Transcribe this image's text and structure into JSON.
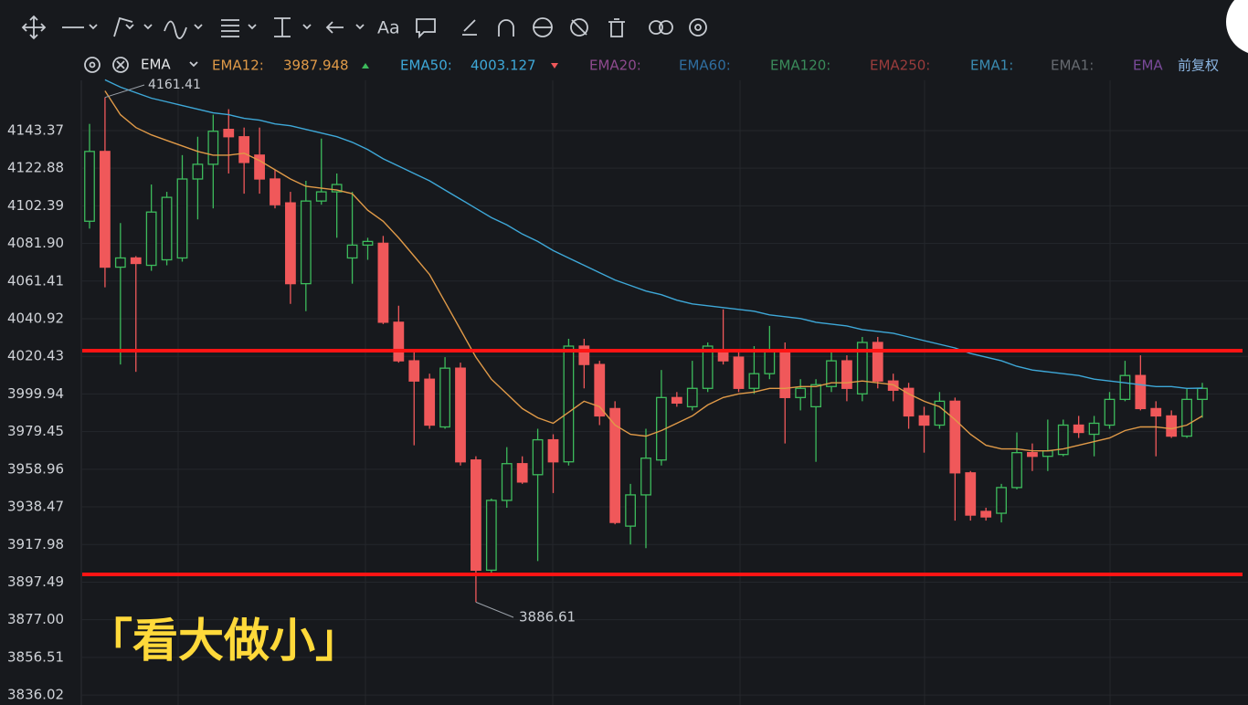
{
  "toolbar": {
    "text_tool": "Aa"
  },
  "indicator": "EMA",
  "adjustment": "前复权",
  "caption": "「看大做小」",
  "chart_data": {
    "type": "candlestick",
    "up_color": "#3dbb5c",
    "down_color": "#f0585a",
    "open": [
      4094,
      4132,
      4069,
      4074,
      4070,
      4073,
      4074,
      4117,
      4125,
      4144,
      4140,
      4130,
      4117,
      4104,
      4060,
      4105,
      4110,
      4074,
      4081,
      4082,
      4039,
      4018,
      4008,
      3982,
      4014,
      3964,
      3904,
      3942,
      3962,
      3956,
      3975,
      3963,
      4026,
      4016,
      3992,
      3928,
      3945,
      3964,
      3998,
      3993,
      4003,
      4024,
      4020,
      4003,
      4011,
      4023,
      3998,
      3993,
      4004,
      4018,
      4000,
      4028,
      4007,
      4003,
      3988,
      3983,
      3996,
      3957,
      3936,
      3935,
      3949,
      3968,
      3966,
      3967,
      3983,
      3978,
      3983,
      3997,
      4010,
      3992,
      3988,
      3977,
      3997
    ],
    "high": [
      4147,
      4161.41,
      4093,
      4075,
      4114,
      4110,
      4130,
      4140,
      4152,
      4155,
      4145,
      4145,
      4122,
      4110,
      4116,
      4139,
      4120,
      4110,
      4085,
      4086,
      4048,
      4023,
      4011,
      4020,
      4017,
      3966,
      3943,
      3971,
      3966,
      3981,
      3978,
      4030,
      4030,
      4018,
      3996,
      3951,
      3981,
      4013,
      4001,
      4018,
      4028,
      4046,
      4023,
      4026,
      4037,
      4028,
      4008,
      4008,
      4023,
      4021,
      4031,
      4031,
      4011,
      4006,
      3993,
      4001,
      3998,
      3958,
      3938,
      3951,
      3979,
      3973,
      3986,
      3986,
      3988,
      3988,
      4001,
      4018,
      4021,
      3996,
      3991,
      4003,
      4006
    ],
    "low": [
      4090,
      4058,
      4016,
      4012,
      4067,
      4070,
      4072,
      4095,
      4101,
      4120,
      4109,
      4109,
      4101,
      4049,
      4045,
      4103,
      4085,
      4060,
      4073,
      4038,
      4017,
      3972,
      3981,
      3981,
      3961,
      3886.61,
      3902,
      3938,
      3951,
      3909,
      3946,
      3961,
      4003,
      3983,
      3929,
      3918,
      3916,
      3961,
      3993,
      3991,
      4001,
      4016,
      4001,
      4000,
      4008,
      3973,
      3991,
      3963,
      4001,
      3996,
      3996,
      4003,
      3996,
      3981,
      3968,
      3981,
      3931,
      3931,
      3931,
      3930,
      3948,
      3958,
      3958,
      3966,
      3976,
      3966,
      3981,
      3996,
      3991,
      3966,
      3976,
      3976,
      3987
    ],
    "close": [
      4132,
      4069,
      4074,
      4071,
      4099,
      4107,
      4117,
      4125,
      4143,
      4140,
      4126,
      4117,
      4103,
      4060,
      4105,
      4110,
      4114,
      4081,
      4083,
      4039,
      4018,
      4007,
      3983,
      4014,
      3963,
      3904,
      3942,
      3962,
      3952,
      3975,
      3963,
      4026,
      4016,
      3988,
      3930,
      3945,
      3965,
      3998,
      3995,
      4003,
      4026,
      4018,
      4003,
      4011,
      4024,
      3998,
      4003,
      4005,
      4018,
      4003,
      4028,
      4007,
      4002,
      3988,
      3983,
      3996,
      3957,
      3934,
      3933,
      3949,
      3968,
      3966,
      3969,
      3983,
      3979,
      3984,
      3997,
      4010,
      3992,
      3988,
      3977,
      3997,
      4003
    ],
    "series": [
      {
        "name": "EMA12:",
        "color": "#e09a48",
        "values": [
          null,
          4165,
          4152,
          4145,
          4141,
          4138,
          4135,
          4132,
          4130,
          4130,
          4131,
          4127,
          4122,
          4117,
          4113,
          4112,
          4111,
          4109,
          4100,
          4094,
          4085,
          4075,
          4065,
          4050,
          4035,
          4020,
          4008,
          4000,
          3992,
          3987,
          3984,
          3990,
          3996,
          3993,
          3983,
          3978,
          3977,
          3980,
          3984,
          3988,
          3994,
          3998,
          4000,
          4001,
          4003,
          4003,
          4004,
          4004,
          4006,
          4006,
          4007,
          4006,
          4005,
          4000,
          3996,
          3993,
          3986,
          3978,
          3972,
          3970,
          3970,
          3969,
          3969,
          3970,
          3972,
          3974,
          3976,
          3980,
          3982,
          3982,
          3981,
          3983,
          3987.948
        ]
      },
      {
        "name": "EMA50:",
        "color": "#3ea8d8",
        "values": [
          null,
          4171,
          4167,
          4164,
          4161,
          4159,
          4157,
          4155,
          4153,
          4152,
          4150,
          4149,
          4147,
          4146,
          4144,
          4142,
          4140,
          4137,
          4133,
          4128,
          4124,
          4120,
          4116,
          4111,
          4106,
          4101,
          4096,
          4092,
          4087,
          4083,
          4078,
          4074,
          4070,
          4066,
          4062,
          4059,
          4056,
          4054,
          4051,
          4049,
          4048,
          4047,
          4046,
          4045,
          4043,
          4042,
          4041,
          4039,
          4038,
          4037,
          4035,
          4034,
          4033,
          4031,
          4029,
          4027,
          4025,
          4022,
          4020,
          4018,
          4015,
          4013,
          4012,
          4011,
          4010,
          4008,
          4007,
          4006,
          4005,
          4004,
          4004,
          4003,
          4003.127
        ]
      }
    ],
    "inactive_series": [
      {
        "name": "EMA20:",
        "color": "#8e4a8e"
      },
      {
        "name": "EMA60:",
        "color": "#2f6ea0"
      },
      {
        "name": "EMA120:",
        "color": "#3a8a5a"
      },
      {
        "name": "EMA250:",
        "color": "#9a3c3c"
      },
      {
        "name": "EMA1:",
        "color": "#3a8ab0"
      },
      {
        "name": "EMA1:",
        "color": "#666a70"
      },
      {
        "name": "EMA",
        "color": "#7a4a9a"
      }
    ],
    "hlines": [
      {
        "value": 4023.5,
        "color": "#ff1414"
      },
      {
        "value": 3901.7,
        "color": "#ff1414"
      }
    ],
    "ylim": [
      3830.6,
      4170.7
    ],
    "yticks": [
      4143.37,
      4122.88,
      4102.39,
      {
        "value": 4081.9,
        "label": "4081.90"
      },
      4061.41,
      4040.92,
      4020.43,
      3999.94,
      3979.45,
      3958.96,
      3938.47,
      3917.98,
      3897.49,
      {
        "value": 3877,
        "label": "3877.00"
      },
      3856.51,
      3836.02
    ],
    "grid": true
  }
}
